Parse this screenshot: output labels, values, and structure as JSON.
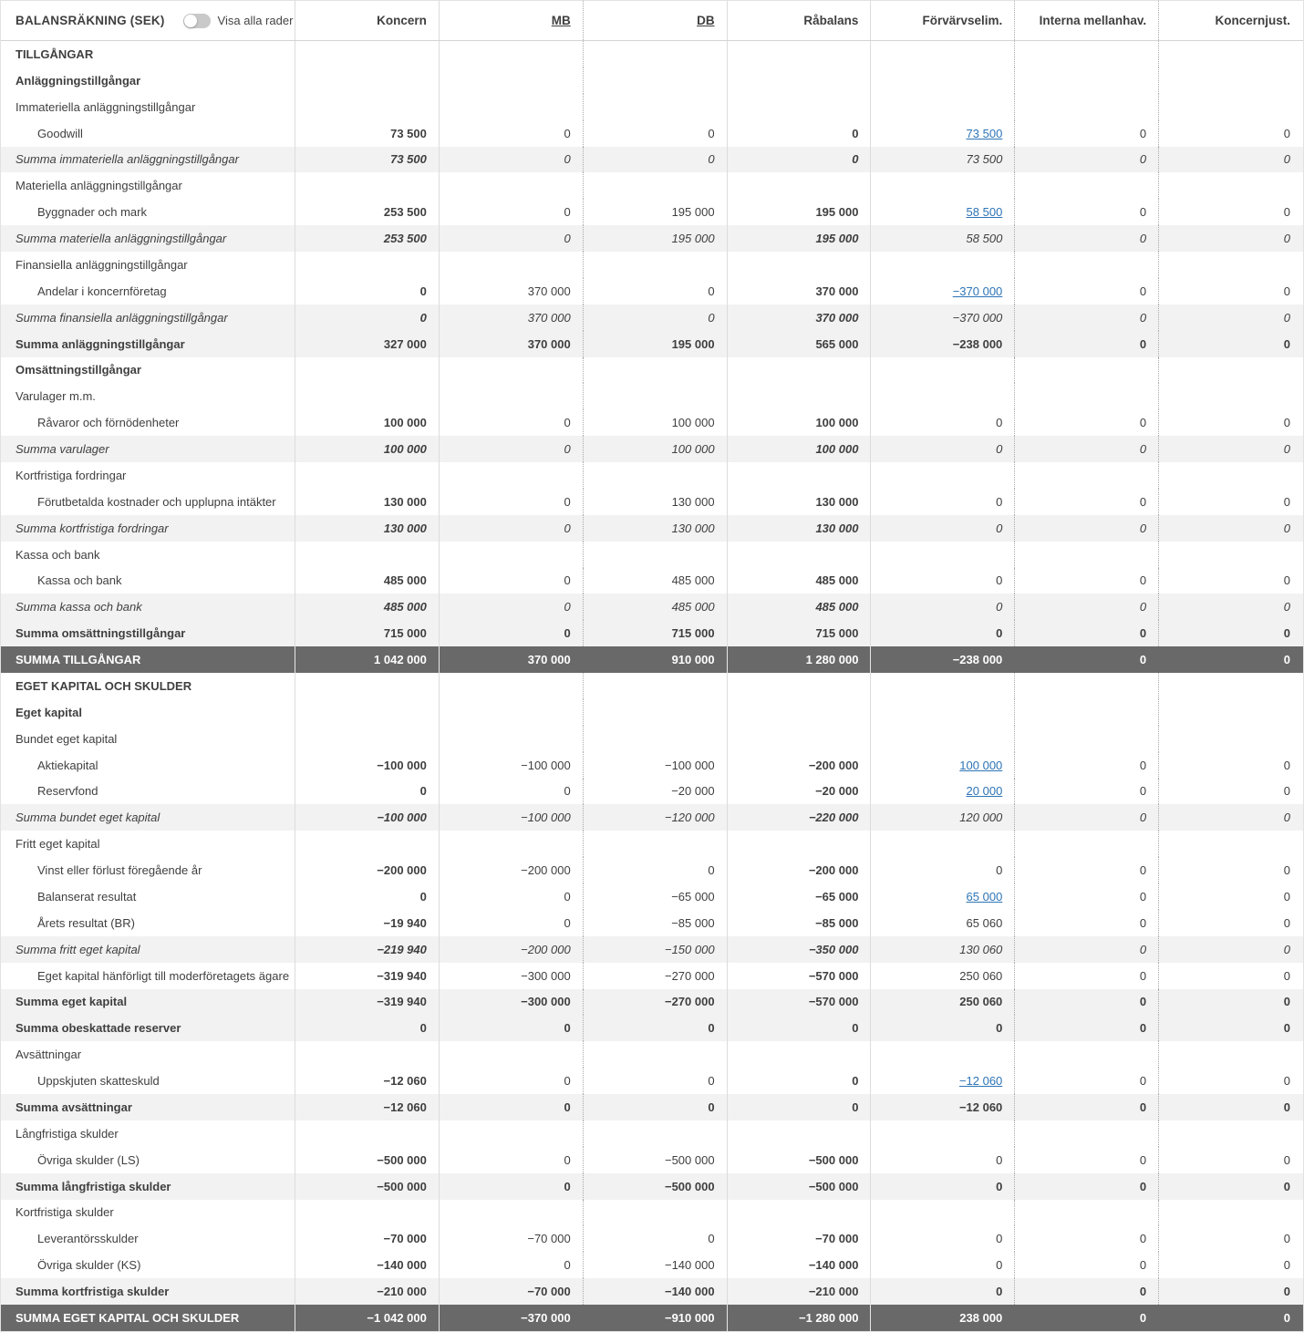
{
  "header": {
    "title": "BALANSRÄKNING (SEK)",
    "toggle_label": "Visa alla rader",
    "toggle_state": "off"
  },
  "colors": {
    "link": "#2d74b6",
    "grand_row_bg": "#696969",
    "subtotal_bg": "#f2f2f2",
    "text": "#3f3f3f"
  },
  "columns": [
    {
      "key": "koncern",
      "label": "Koncern",
      "header_link": false
    },
    {
      "key": "mb",
      "label": "MB",
      "header_link": true
    },
    {
      "key": "db",
      "label": "DB",
      "header_link": true
    },
    {
      "key": "rabalans",
      "label": "Råbalans",
      "header_link": false
    },
    {
      "key": "forvarvselim",
      "label": "Förvärvselim.",
      "header_link": false
    },
    {
      "key": "interna-mellanhav",
      "label": "Interna mellanhav.",
      "header_link": false
    },
    {
      "key": "koncernjust",
      "label": "Koncernjust.",
      "header_link": false
    }
  ],
  "rows": [
    {
      "label": "TILLGÅNGAR",
      "style": "caps",
      "cells": [
        "",
        "",
        "",
        "",
        "",
        "",
        ""
      ],
      "link": null
    },
    {
      "label": "Anläggningstillgångar",
      "style": "bold",
      "cells": [
        "",
        "",
        "",
        "",
        "",
        "",
        ""
      ],
      "link": null
    },
    {
      "label": "Immateriella anläggningstillgångar",
      "style": "plain",
      "cells": [
        "",
        "",
        "",
        "",
        "",
        "",
        ""
      ],
      "link": null
    },
    {
      "label": "Goodwill",
      "style": "detail",
      "cells": [
        "73 500",
        "0",
        "0",
        "0",
        "73 500",
        "0",
        "0"
      ],
      "link": 4
    },
    {
      "label": "Summa immateriella anläggningstillgångar",
      "style": "sum-italic",
      "cells": [
        "73 500",
        "0",
        "0",
        "0",
        "73 500",
        "0",
        "0"
      ],
      "link": null
    },
    {
      "label": "Materiella anläggningstillgångar",
      "style": "plain",
      "cells": [
        "",
        "",
        "",
        "",
        "",
        "",
        ""
      ],
      "link": null
    },
    {
      "label": "Byggnader och mark",
      "style": "detail",
      "cells": [
        "253 500",
        "0",
        "195 000",
        "195 000",
        "58 500",
        "0",
        "0"
      ],
      "link": 4
    },
    {
      "label": "Summa materiella anläggningstillgångar",
      "style": "sum-italic",
      "cells": [
        "253 500",
        "0",
        "195 000",
        "195 000",
        "58 500",
        "0",
        "0"
      ],
      "link": null
    },
    {
      "label": "Finansiella anläggningstillgångar",
      "style": "plain",
      "cells": [
        "",
        "",
        "",
        "",
        "",
        "",
        ""
      ],
      "link": null
    },
    {
      "label": "Andelar i koncernföretag",
      "style": "detail",
      "cells": [
        "0",
        "370 000",
        "0",
        "370 000",
        "−370 000",
        "0",
        "0"
      ],
      "link": 4
    },
    {
      "label": "Summa finansiella anläggningstillgångar",
      "style": "sum-italic",
      "cells": [
        "0",
        "370 000",
        "0",
        "370 000",
        "−370 000",
        "0",
        "0"
      ],
      "link": null
    },
    {
      "label": "Summa anläggningstillgångar",
      "style": "sum-bold",
      "cells": [
        "327 000",
        "370 000",
        "195 000",
        "565 000",
        "−238 000",
        "0",
        "0"
      ],
      "link": null
    },
    {
      "label": "Omsättningstillgångar",
      "style": "bold",
      "cells": [
        "",
        "",
        "",
        "",
        "",
        "",
        ""
      ],
      "link": null
    },
    {
      "label": "Varulager m.m.",
      "style": "plain",
      "cells": [
        "",
        "",
        "",
        "",
        "",
        "",
        ""
      ],
      "link": null
    },
    {
      "label": "Råvaror och förnödenheter",
      "style": "detail",
      "cells": [
        "100 000",
        "0",
        "100 000",
        "100 000",
        "0",
        "0",
        "0"
      ],
      "link": null
    },
    {
      "label": "Summa varulager",
      "style": "sum-italic",
      "cells": [
        "100 000",
        "0",
        "100 000",
        "100 000",
        "0",
        "0",
        "0"
      ],
      "link": null
    },
    {
      "label": "Kortfristiga fordringar",
      "style": "plain",
      "cells": [
        "",
        "",
        "",
        "",
        "",
        "",
        ""
      ],
      "link": null
    },
    {
      "label": "Förutbetalda kostnader och upplupna intäkter",
      "style": "detail",
      "cells": [
        "130 000",
        "0",
        "130 000",
        "130 000",
        "0",
        "0",
        "0"
      ],
      "link": null
    },
    {
      "label": "Summa kortfristiga fordringar",
      "style": "sum-italic",
      "cells": [
        "130 000",
        "0",
        "130 000",
        "130 000",
        "0",
        "0",
        "0"
      ],
      "link": null
    },
    {
      "label": "Kassa och bank",
      "style": "plain",
      "cells": [
        "",
        "",
        "",
        "",
        "",
        "",
        ""
      ],
      "link": null
    },
    {
      "label": "Kassa och bank",
      "style": "detail",
      "cells": [
        "485 000",
        "0",
        "485 000",
        "485 000",
        "0",
        "0",
        "0"
      ],
      "link": null
    },
    {
      "label": "Summa kassa och bank",
      "style": "sum-italic",
      "cells": [
        "485 000",
        "0",
        "485 000",
        "485 000",
        "0",
        "0",
        "0"
      ],
      "link": null
    },
    {
      "label": "Summa omsättningstillgångar",
      "style": "sum-bold",
      "cells": [
        "715 000",
        "0",
        "715 000",
        "715 000",
        "0",
        "0",
        "0"
      ],
      "link": null
    },
    {
      "label": "SUMMA TILLGÅNGAR",
      "style": "grand",
      "cells": [
        "1 042 000",
        "370 000",
        "910 000",
        "1 280 000",
        "−238 000",
        "0",
        "0"
      ],
      "link": null
    },
    {
      "label": "EGET KAPITAL OCH SKULDER",
      "style": "caps",
      "cells": [
        "",
        "",
        "",
        "",
        "",
        "",
        ""
      ],
      "link": null
    },
    {
      "label": "Eget kapital",
      "style": "bold",
      "cells": [
        "",
        "",
        "",
        "",
        "",
        "",
        ""
      ],
      "link": null
    },
    {
      "label": "Bundet eget kapital",
      "style": "plain",
      "cells": [
        "",
        "",
        "",
        "",
        "",
        "",
        ""
      ],
      "link": null
    },
    {
      "label": "Aktiekapital",
      "style": "detail",
      "cells": [
        "−100 000",
        "−100 000",
        "−100 000",
        "−200 000",
        "100 000",
        "0",
        "0"
      ],
      "link": 4
    },
    {
      "label": "Reservfond",
      "style": "detail",
      "cells": [
        "0",
        "0",
        "−20 000",
        "−20 000",
        "20 000",
        "0",
        "0"
      ],
      "link": 4
    },
    {
      "label": "Summa bundet eget kapital",
      "style": "sum-italic",
      "cells": [
        "−100 000",
        "−100 000",
        "−120 000",
        "−220 000",
        "120 000",
        "0",
        "0"
      ],
      "link": null
    },
    {
      "label": "Fritt eget kapital",
      "style": "plain",
      "cells": [
        "",
        "",
        "",
        "",
        "",
        "",
        ""
      ],
      "link": null
    },
    {
      "label": "Vinst eller förlust föregående år",
      "style": "detail",
      "cells": [
        "−200 000",
        "−200 000",
        "0",
        "−200 000",
        "0",
        "0",
        "0"
      ],
      "link": null
    },
    {
      "label": "Balanserat resultat",
      "style": "detail",
      "cells": [
        "0",
        "0",
        "−65 000",
        "−65 000",
        "65 000",
        "0",
        "0"
      ],
      "link": 4
    },
    {
      "label": "Årets resultat (BR)",
      "style": "detail",
      "cells": [
        "−19 940",
        "0",
        "−85 000",
        "−85 000",
        "65 060",
        "0",
        "0"
      ],
      "link": null
    },
    {
      "label": "Summa fritt eget kapital",
      "style": "sum-italic",
      "cells": [
        "−219 940",
        "−200 000",
        "−150 000",
        "−350 000",
        "130 060",
        "0",
        "0"
      ],
      "link": null
    },
    {
      "label": "Eget kapital hänförligt till moderföretagets ägare",
      "style": "detail",
      "cells": [
        "−319 940",
        "−300 000",
        "−270 000",
        "−570 000",
        "250 060",
        "0",
        "0"
      ],
      "link": null
    },
    {
      "label": "Summa eget kapital",
      "style": "sum-bold",
      "cells": [
        "−319 940",
        "−300 000",
        "−270 000",
        "−570 000",
        "250 060",
        "0",
        "0"
      ],
      "link": null
    },
    {
      "label": "Summa obeskattade reserver",
      "style": "sum-bold",
      "cells": [
        "0",
        "0",
        "0",
        "0",
        "0",
        "0",
        "0"
      ],
      "link": null
    },
    {
      "label": "Avsättningar",
      "style": "plain",
      "cells": [
        "",
        "",
        "",
        "",
        "",
        "",
        ""
      ],
      "link": null
    },
    {
      "label": "Uppskjuten skatteskuld",
      "style": "detail",
      "cells": [
        "−12 060",
        "0",
        "0",
        "0",
        "−12 060",
        "0",
        "0"
      ],
      "link": 4
    },
    {
      "label": "Summa avsättningar",
      "style": "sum-bold",
      "cells": [
        "−12 060",
        "0",
        "0",
        "0",
        "−12 060",
        "0",
        "0"
      ],
      "link": null
    },
    {
      "label": "Långfristiga skulder",
      "style": "plain",
      "cells": [
        "",
        "",
        "",
        "",
        "",
        "",
        ""
      ],
      "link": null
    },
    {
      "label": "Övriga skulder (LS)",
      "style": "detail",
      "cells": [
        "−500 000",
        "0",
        "−500 000",
        "−500 000",
        "0",
        "0",
        "0"
      ],
      "link": null
    },
    {
      "label": "Summa långfristiga skulder",
      "style": "sum-bold",
      "cells": [
        "−500 000",
        "0",
        "−500 000",
        "−500 000",
        "0",
        "0",
        "0"
      ],
      "link": null
    },
    {
      "label": "Kortfristiga skulder",
      "style": "plain",
      "cells": [
        "",
        "",
        "",
        "",
        "",
        "",
        ""
      ],
      "link": null
    },
    {
      "label": "Leverantörsskulder",
      "style": "detail",
      "cells": [
        "−70 000",
        "−70 000",
        "0",
        "−70 000",
        "0",
        "0",
        "0"
      ],
      "link": null
    },
    {
      "label": "Övriga skulder (KS)",
      "style": "detail",
      "cells": [
        "−140 000",
        "0",
        "−140 000",
        "−140 000",
        "0",
        "0",
        "0"
      ],
      "link": null
    },
    {
      "label": "Summa kortfristiga skulder",
      "style": "sum-bold",
      "cells": [
        "−210 000",
        "−70 000",
        "−140 000",
        "−210 000",
        "0",
        "0",
        "0"
      ],
      "link": null
    },
    {
      "label": "SUMMA EGET KAPITAL OCH SKULDER",
      "style": "grand",
      "cells": [
        "−1 042 000",
        "−370 000",
        "−910 000",
        "−1 280 000",
        "238 000",
        "0",
        "0"
      ],
      "link": null
    }
  ]
}
